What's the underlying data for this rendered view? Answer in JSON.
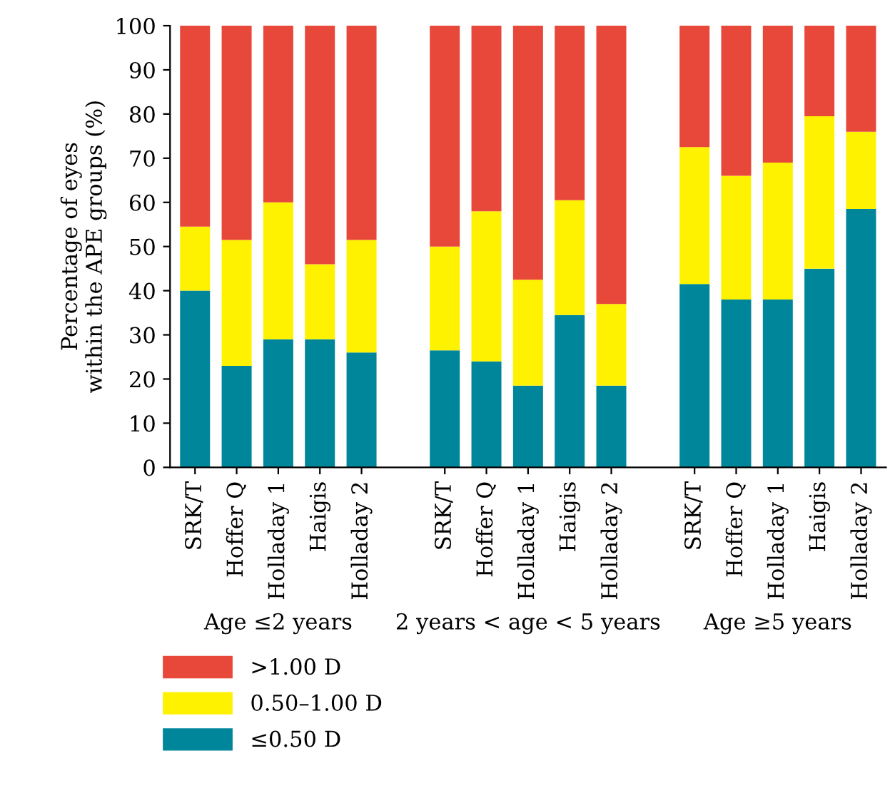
{
  "chart_data": {
    "type": "bar",
    "stacked": true,
    "ylabel": "Percentage of eyes\nwithin the APE groups (%)",
    "categories": [
      "SRK/T",
      "Hoffer Q",
      "Holladay 1",
      "Haigis",
      "Holladay 2",
      null,
      "SRK/T",
      "Hoffer Q",
      "Holladay 1",
      "Haigis",
      "Holladay 2",
      null,
      "SRK/T",
      "Hoffer Q",
      "Holladay 1",
      "Haigis",
      "Holladay 2"
    ],
    "series": [
      {
        "name": "≤0.50 D",
        "color": "#00869a",
        "values": [
          40,
          23,
          29,
          29,
          26,
          null,
          26.5,
          24,
          18.5,
          34.5,
          18.5,
          null,
          41.5,
          38,
          38,
          45,
          58.5
        ]
      },
      {
        "name": "0.50–1.00 D",
        "color": "#fff200",
        "values": [
          14.5,
          28.5,
          31,
          17,
          25.5,
          null,
          23.5,
          34,
          24,
          26,
          18.5,
          null,
          31,
          28,
          31,
          34.5,
          17.5
        ]
      },
      {
        "name": ">1.00 D",
        "color": "#e8483a",
        "values": [
          45.5,
          48.5,
          40,
          54,
          48.5,
          null,
          50,
          42,
          57.5,
          39.5,
          63,
          null,
          27.5,
          34,
          31,
          20.5,
          24
        ]
      }
    ],
    "annotations": [
      "Age ≤2 years",
      "2 years < age < 5 years",
      "Age ≥5 years"
    ],
    "ylim": [
      0,
      100
    ],
    "yticks": [
      0,
      10,
      20,
      30,
      40,
      50,
      60,
      70,
      80,
      90,
      100
    ],
    "legend": "bottom left",
    "grid": false
  }
}
